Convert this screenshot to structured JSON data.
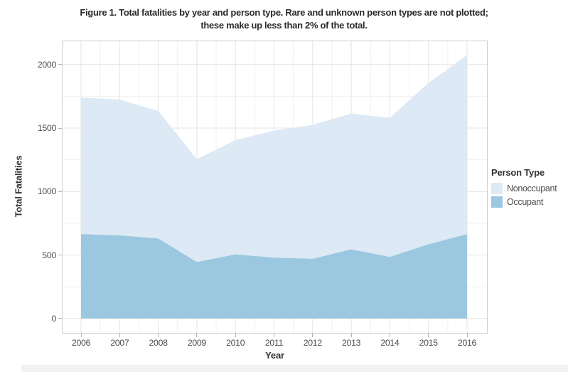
{
  "figure": {
    "title_line1": "Figure 1. Total fatalities by year and person type. Rare and unknown person types are not plotted;",
    "title_line2": "these make up less than 2% of the total."
  },
  "chart_data": {
    "type": "area",
    "stacked": true,
    "title": "Figure 1. Total fatalities by year and person type. Rare and unknown person types are not plotted; these make up less than 2% of the total.",
    "xlabel": "Year",
    "ylabel": "Total Fatalities",
    "x": [
      2006,
      2007,
      2008,
      2009,
      2010,
      2011,
      2012,
      2013,
      2014,
      2015,
      2016
    ],
    "series": [
      {
        "name": "Occupant",
        "color": "#9bc8e0",
        "values": [
          665,
          655,
          630,
          445,
          505,
          480,
          470,
          545,
          485,
          585,
          665
        ]
      },
      {
        "name": "Nonoccupant",
        "color": "#dde9f5",
        "values": [
          1075,
          1070,
          1005,
          810,
          900,
          1000,
          1055,
          1070,
          1095,
          1270,
          1410
        ]
      }
    ],
    "stacked_totals": [
      1740,
      1725,
      1635,
      1255,
      1405,
      1480,
      1525,
      1615,
      1580,
      1855,
      2075
    ],
    "y_ticks": [
      0,
      500,
      1000,
      1500,
      2000
    ],
    "y_minor_ticks": [
      250,
      750,
      1250,
      1750
    ],
    "ylim": [
      0,
      2075
    ],
    "grid": "major and minor gridlines on, white panel",
    "legend": {
      "title": "Person Type",
      "position": "right",
      "items": [
        {
          "label": "Nonoccupant",
          "color": "#dde9f5"
        },
        {
          "label": "Occupant",
          "color": "#9bc8e0"
        }
      ]
    }
  },
  "colors": {
    "background": "#ffffff",
    "panel_border": "#cfcfcf",
    "grid_major": "#e4e4e4",
    "grid_minor": "#f1f1f1",
    "tick": "#b0b0b0",
    "tick_label": "#4d4d4d",
    "axis_title": "#333333",
    "title_text": "#2b2b2b",
    "legend_title": "#333333",
    "legend_label": "#4d4d4d",
    "bottom_strip": "#f2f2f2"
  }
}
